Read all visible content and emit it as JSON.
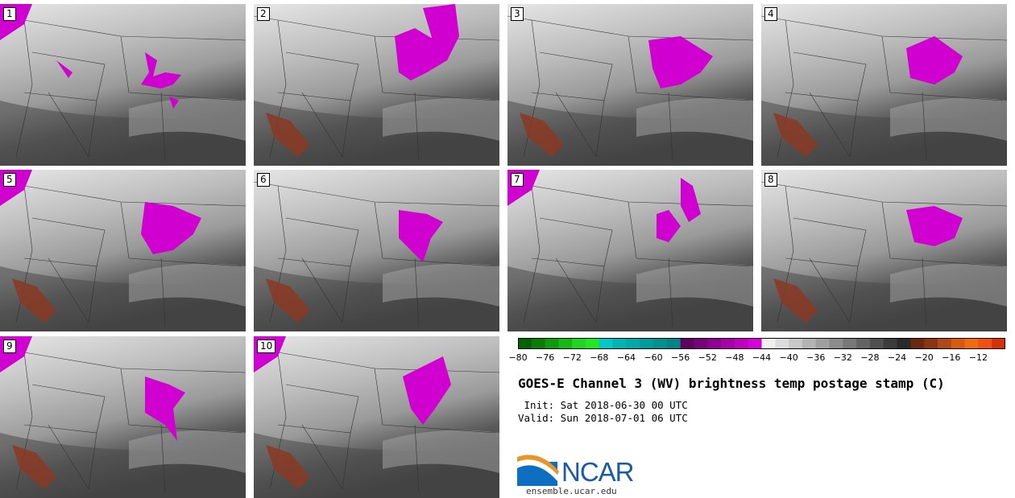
{
  "panels": [
    {
      "label": "1"
    },
    {
      "label": "2"
    },
    {
      "label": "3"
    },
    {
      "label": "4"
    },
    {
      "label": "5"
    },
    {
      "label": "6"
    },
    {
      "label": "7"
    },
    {
      "label": "8"
    },
    {
      "label": "9"
    },
    {
      "label": "10"
    }
  ],
  "colorbar": {
    "colors": [
      "#006400",
      "#0a7c0a",
      "#0f9a0f",
      "#16b816",
      "#20d620",
      "#22e822",
      "#00c8c8",
      "#00b4b4",
      "#00a8a8",
      "#009c9c",
      "#009090",
      "#008484",
      "#600060",
      "#780078",
      "#900090",
      "#a800a8",
      "#c000c0",
      "#d800d8",
      "#f0f0f0",
      "#dcdcdc",
      "#c8c8c8",
      "#b4b4b4",
      "#a0a0a0",
      "#8c8c8c",
      "#787878",
      "#646464",
      "#505050",
      "#3c3c3c",
      "#2a2a2a",
      "#6a2a10",
      "#8a3412",
      "#b04818",
      "#d85a10",
      "#f06a10",
      "#f05010",
      "#d83008"
    ],
    "ticks": [
      "−80",
      "−76",
      "−72",
      "−68",
      "−64",
      "−60",
      "−56",
      "−52",
      "−48",
      "−44",
      "−40",
      "−36",
      "−32",
      "−28",
      "−24",
      "−20",
      "−16",
      "−12"
    ]
  },
  "title": "GOES-E Channel 3 (WV) brightness temp postage stamp (C)",
  "init": " Init: Sat 2018-06-30 00 UTC",
  "valid": "Valid: Sun 2018-07-01 06 UTC",
  "logo": {
    "text": "NCAR",
    "url": "ensemble.ucar.edu"
  }
}
